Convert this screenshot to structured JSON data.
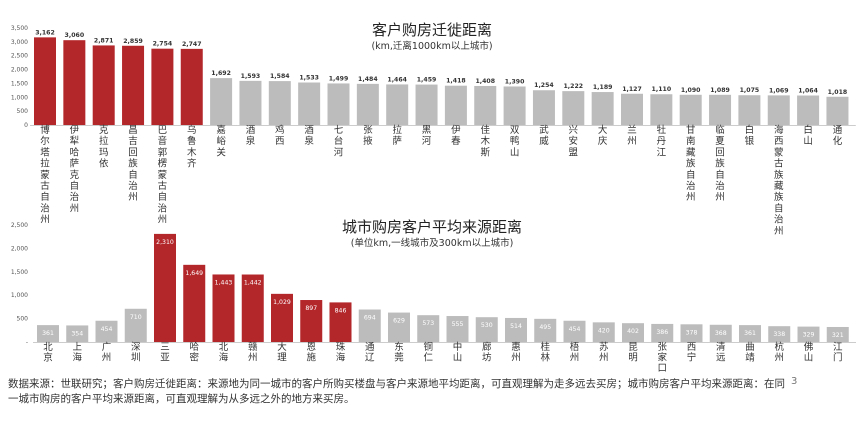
{
  "chart_data": [
    {
      "type": "bar",
      "title": "客户购房迁徙距离",
      "subtitle": "(km,迁离1000km以上城市)",
      "xlabel": "",
      "ylabel": "",
      "ylim": [
        0,
        3500
      ],
      "yticks": [
        "0",
        "500",
        "1,000",
        "1,500",
        "2,000",
        "2,500",
        "3,000",
        "3,500"
      ],
      "grid": false,
      "categories": [
        "博尔塔拉蒙古自治州",
        "伊犁哈萨克自治州",
        "克拉玛依",
        "昌吉回族自治州",
        "巴音郭楞蒙古自治州",
        "乌鲁木齐",
        "嘉峪关",
        "酒泉",
        "鸡西",
        "酒泉",
        "七台河",
        "张掖",
        "拉萨",
        "黑河",
        "伊春",
        "佳木斯",
        "双鸭山",
        "武威",
        "兴安盟",
        "大庆",
        "兰州",
        "牡丹江",
        "甘南藏族自治州",
        "临夏回族自治州",
        "白银",
        "海西蒙古族藏族自治州",
        "白山",
        "通化"
      ],
      "values": [
        3162,
        3060,
        2871,
        2859,
        2754,
        2747,
        1692,
        1593,
        1584,
        1533,
        1499,
        1484,
        1464,
        1459,
        1418,
        1408,
        1390,
        1254,
        1222,
        1189,
        1127,
        1110,
        1090,
        1089,
        1075,
        1069,
        1064,
        1018
      ],
      "value_labels": [
        "3,162",
        "3,060",
        "2,871",
        "2,859",
        "2,754",
        "2,747",
        "1,692",
        "1,593",
        "1,584",
        "1,533",
        "1,499",
        "1,484",
        "1,464",
        "1,459",
        "1,418",
        "1,408",
        "1,390",
        "1,254",
        "1,222",
        "1,189",
        "1,127",
        "1,110",
        "1,090",
        "1,089",
        "1,075",
        "1,069",
        "1,064",
        "1,018"
      ],
      "highlight_count": 6,
      "colors": {
        "highlight": "#b3262a",
        "normal": "#bcbcbc",
        "label_normal": "#333333",
        "label_highlight": "#333333"
      }
    },
    {
      "type": "bar",
      "title": "城市购房客户平均来源距离",
      "subtitle": "(单位km,一线城市及300km以上城市)",
      "xlabel": "",
      "ylabel": "",
      "ylim": [
        0,
        2500
      ],
      "yticks": [
        "-",
        "500",
        "1,000",
        "1,500",
        "2,000",
        "2,500"
      ],
      "grid": false,
      "categories": [
        "北京",
        "上海",
        "广州",
        "深圳",
        "三亚",
        "哈密",
        "北海",
        "赣州",
        "大理",
        "恩施",
        "珠海",
        "通辽",
        "东莞",
        "铜仁",
        "中山",
        "廊坊",
        "惠州",
        "桂林",
        "梧州",
        "苏州",
        "昆明",
        "张家口",
        "西宁",
        "清远",
        "曲靖",
        "杭州",
        "佛山",
        "江门"
      ],
      "values": [
        361,
        354,
        454,
        710,
        2310,
        1649,
        1443,
        1442,
        1029,
        897,
        846,
        694,
        629,
        573,
        555,
        530,
        514,
        495,
        454,
        420,
        402,
        386,
        378,
        368,
        361,
        338,
        329,
        321
      ],
      "value_labels": [
        "361",
        "354",
        "454",
        "710",
        "2,310",
        "1,649",
        "1,443",
        "1,442",
        "1,029",
        "897",
        "846",
        "694",
        "629",
        "573",
        "555",
        "530",
        "514",
        "495",
        "454",
        "420",
        "402",
        "386",
        "378",
        "368",
        "361",
        "338",
        "329",
        "321"
      ],
      "highlight_indices": [
        4,
        5,
        6,
        7,
        8,
        9,
        10
      ],
      "colors": {
        "highlight": "#b3262a",
        "normal": "#bcbcbc",
        "label_normal": "#ffffff",
        "label_highlight": "#ffffff"
      }
    }
  ],
  "footer": {
    "source_text": "数据来源：世联研究；客户购房迁徙距离：来源地为同一城市的客户所购买楼盘与客户来源地平均距离，可直观理解为走多远去买房；城市购房客户平均来源距离：在同一城市购房的客户平均来源距离，可直观理解为从多远之外的地方来买房。",
    "page_number": "3"
  }
}
